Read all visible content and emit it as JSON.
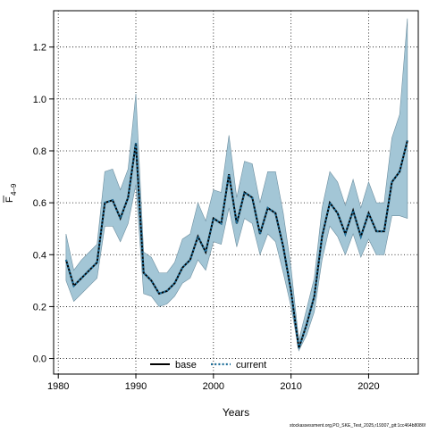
{
  "chart_data": {
    "type": "line",
    "xlabel": "Years",
    "ylabel_main": "F",
    "ylabel_sub": "4–9",
    "xlim": [
      1979.4,
      2026.4
    ],
    "ylim": [
      -0.06,
      1.34
    ],
    "xticks": [
      1980,
      1990,
      2000,
      2010,
      2020
    ],
    "yticks": [
      "0.0",
      "0.2",
      "0.4",
      "0.6",
      "0.8",
      "1.0",
      "1.2"
    ],
    "grid": true,
    "legend_position": "bottom-center",
    "legend": [
      {
        "label": "base",
        "style": "solid",
        "color": "#000000"
      },
      {
        "label": "current",
        "style": "dotted",
        "color": "#1f6f9a"
      }
    ],
    "band_color": "#a3c6d6",
    "x": [
      1981,
      1982,
      1983,
      1984,
      1985,
      1986,
      1987,
      1988,
      1989,
      1990,
      1991,
      1992,
      1993,
      1994,
      1995,
      1996,
      1997,
      1998,
      1999,
      2000,
      2001,
      2002,
      2003,
      2004,
      2005,
      2006,
      2007,
      2008,
      2009,
      2010,
      2011,
      2012,
      2013,
      2014,
      2015,
      2016,
      2017,
      2018,
      2019,
      2020,
      2021,
      2022,
      2023,
      2024,
      2025
    ],
    "series": [
      {
        "name": "base",
        "values": [
          0.38,
          0.28,
          0.31,
          0.34,
          0.37,
          0.6,
          0.61,
          0.54,
          0.62,
          0.83,
          0.33,
          0.3,
          0.25,
          0.26,
          0.29,
          0.35,
          0.38,
          0.47,
          0.41,
          0.54,
          0.52,
          0.71,
          0.52,
          0.64,
          0.62,
          0.48,
          0.58,
          0.56,
          0.43,
          0.26,
          0.04,
          0.13,
          0.24,
          0.47,
          0.6,
          0.56,
          0.48,
          0.57,
          0.47,
          0.56,
          0.49,
          0.49,
          0.68,
          0.72,
          0.84
        ]
      },
      {
        "name": "current",
        "values": [
          0.38,
          0.28,
          0.31,
          0.34,
          0.37,
          0.6,
          0.61,
          0.54,
          0.62,
          0.83,
          0.33,
          0.3,
          0.25,
          0.26,
          0.29,
          0.35,
          0.38,
          0.47,
          0.41,
          0.54,
          0.52,
          0.71,
          0.52,
          0.64,
          0.62,
          0.48,
          0.58,
          0.56,
          0.43,
          0.26,
          0.04,
          0.13,
          0.24,
          0.47,
          0.6,
          0.56,
          0.48,
          0.57,
          0.47,
          0.56,
          0.49,
          0.49,
          0.68,
          0.72,
          0.84
        ]
      }
    ],
    "band_upper": [
      0.48,
      0.34,
      0.38,
      0.41,
      0.44,
      0.72,
      0.73,
      0.65,
      0.73,
      1.02,
      0.41,
      0.39,
      0.33,
      0.33,
      0.37,
      0.46,
      0.48,
      0.6,
      0.53,
      0.65,
      0.64,
      0.86,
      0.62,
      0.76,
      0.75,
      0.6,
      0.72,
      0.72,
      0.56,
      0.35,
      0.07,
      0.19,
      0.31,
      0.58,
      0.72,
      0.68,
      0.59,
      0.69,
      0.58,
      0.68,
      0.6,
      0.6,
      0.85,
      0.94,
      1.31
    ],
    "band_lower": [
      0.3,
      0.22,
      0.25,
      0.28,
      0.31,
      0.51,
      0.51,
      0.45,
      0.52,
      0.67,
      0.25,
      0.24,
      0.2,
      0.21,
      0.24,
      0.29,
      0.31,
      0.38,
      0.34,
      0.45,
      0.44,
      0.58,
      0.43,
      0.54,
      0.52,
      0.4,
      0.48,
      0.45,
      0.33,
      0.2,
      0.03,
      0.09,
      0.18,
      0.38,
      0.51,
      0.47,
      0.4,
      0.48,
      0.39,
      0.46,
      0.4,
      0.4,
      0.55,
      0.55,
      0.54
    ]
  },
  "footer_text": "stockassessment.org,PO_SKE_Test_2025,r19307_git:1cc464b8086f"
}
